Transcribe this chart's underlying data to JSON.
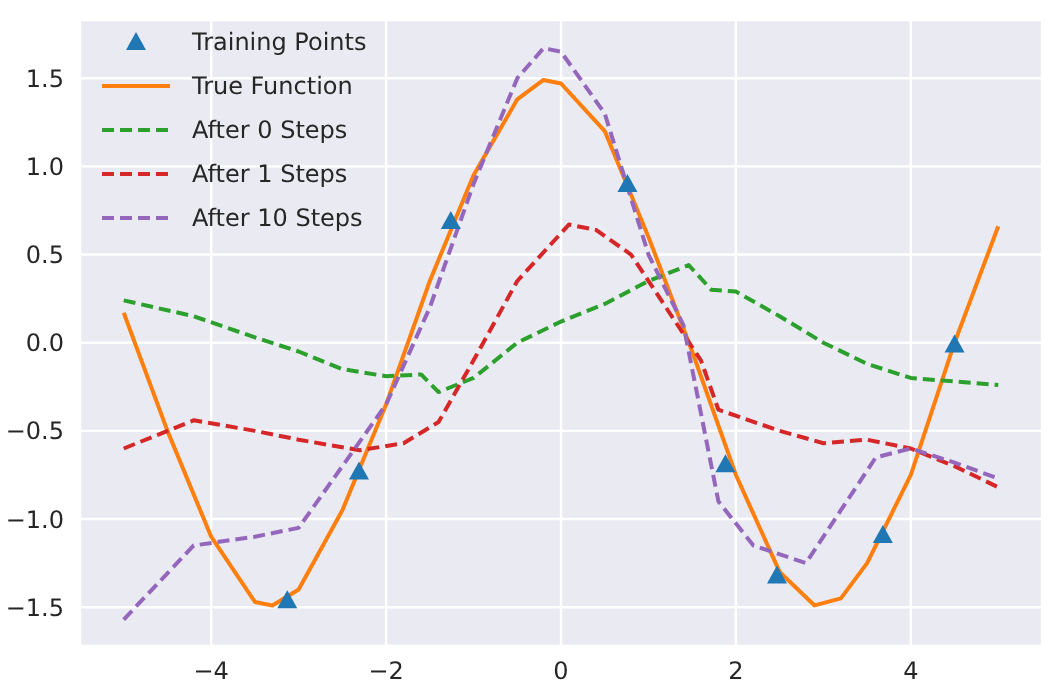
{
  "chart_data": {
    "type": "line",
    "xlim": [
      -5.5,
      5.5
    ],
    "ylim": [
      -1.72,
      1.83
    ],
    "xticks": [
      {
        "value": -4,
        "label": "−4"
      },
      {
        "value": -2,
        "label": "−2"
      },
      0,
      2,
      4
    ],
    "yticks": [
      {
        "value": -1.5,
        "label": "−1.5"
      },
      {
        "value": -1.0,
        "label": "−1.0"
      },
      {
        "value": -0.5,
        "label": "−0.5"
      },
      {
        "value": 0,
        "label": "0.0"
      },
      {
        "value": 0.5,
        "label": "0.5"
      },
      {
        "value": 1.0,
        "label": "1.0"
      },
      {
        "value": 1.5,
        "label": "1.5"
      }
    ],
    "grid": true,
    "legend": "top left",
    "series": [
      {
        "name": "Training Points",
        "type": "scatter",
        "marker": "triangle",
        "color": "#1f77b4",
        "x": [
          -3.13,
          -2.31,
          -1.26,
          0.76,
          1.88,
          2.47,
          3.68,
          4.5
        ],
        "values": [
          -1.46,
          -0.73,
          0.69,
          0.9,
          -0.69,
          -1.32,
          -1.09,
          -0.01
        ]
      },
      {
        "name": "True Function",
        "type": "line",
        "line_style": "solid",
        "color": "#ff7f0e",
        "x": [
          -5,
          -4.5,
          -4,
          -3.5,
          -3.3,
          -3,
          -2.5,
          -2,
          -1.5,
          -1,
          -0.5,
          -0.2,
          0,
          0.5,
          1,
          1.5,
          2,
          2.5,
          2.9,
          3.2,
          3.5,
          4,
          4.5,
          5
        ],
        "values": [
          0.17,
          -0.5,
          -1.1,
          -1.47,
          -1.49,
          -1.4,
          -0.95,
          -0.35,
          0.35,
          0.95,
          1.38,
          1.49,
          1.47,
          1.2,
          0.6,
          -0.05,
          -0.75,
          -1.3,
          -1.49,
          -1.45,
          -1.25,
          -0.75,
          0,
          0.66
        ]
      },
      {
        "name": "After 0 Steps",
        "type": "line",
        "line_style": "dashed",
        "color": "#2ca02c",
        "x": [
          -5,
          -4.2,
          -3.5,
          -3,
          -2.5,
          -2,
          -1.6,
          -1.4,
          -1,
          -0.5,
          0,
          0.5,
          1,
          1.46,
          1.72,
          2,
          2.5,
          3,
          3.5,
          4,
          4.5,
          5
        ],
        "values": [
          0.24,
          0.15,
          0.03,
          -0.05,
          -0.15,
          -0.19,
          -0.18,
          -0.28,
          -0.2,
          0,
          0.12,
          0.22,
          0.35,
          0.44,
          0.3,
          0.29,
          0.15,
          0,
          -0.12,
          -0.2,
          -0.22,
          -0.24
        ]
      },
      {
        "name": "After 1 Steps",
        "type": "line",
        "line_style": "dashed",
        "color": "#d62728",
        "x": [
          -5,
          -4.2,
          -3.5,
          -3,
          -2.3,
          -1.8,
          -1.4,
          -1,
          -0.5,
          0.09,
          0.4,
          0.8,
          1.2,
          1.6,
          1.8,
          2.5,
          3,
          3.5,
          4,
          4.5,
          5
        ],
        "values": [
          -0.6,
          -0.44,
          -0.5,
          -0.55,
          -0.61,
          -0.57,
          -0.45,
          -0.1,
          0.35,
          0.67,
          0.64,
          0.5,
          0.2,
          -0.1,
          -0.38,
          -0.5,
          -0.57,
          -0.55,
          -0.6,
          -0.7,
          -0.82
        ]
      },
      {
        "name": "After 10 Steps",
        "type": "line",
        "line_style": "dashed",
        "color": "#9467bd",
        "x": [
          -5,
          -4.2,
          -3.5,
          -3,
          -2.5,
          -2,
          -1.5,
          -1,
          -0.5,
          -0.2,
          0,
          0.5,
          1,
          1.4,
          1.8,
          2.2,
          2.8,
          3.2,
          3.6,
          4,
          4.5,
          5
        ],
        "values": [
          -1.57,
          -1.15,
          -1.1,
          -1.05,
          -0.7,
          -0.35,
          0.2,
          0.9,
          1.5,
          1.67,
          1.65,
          1.3,
          0.5,
          0.1,
          -0.9,
          -1.15,
          -1.25,
          -0.95,
          -0.65,
          -0.6,
          -0.68,
          -0.77
        ]
      }
    ]
  }
}
